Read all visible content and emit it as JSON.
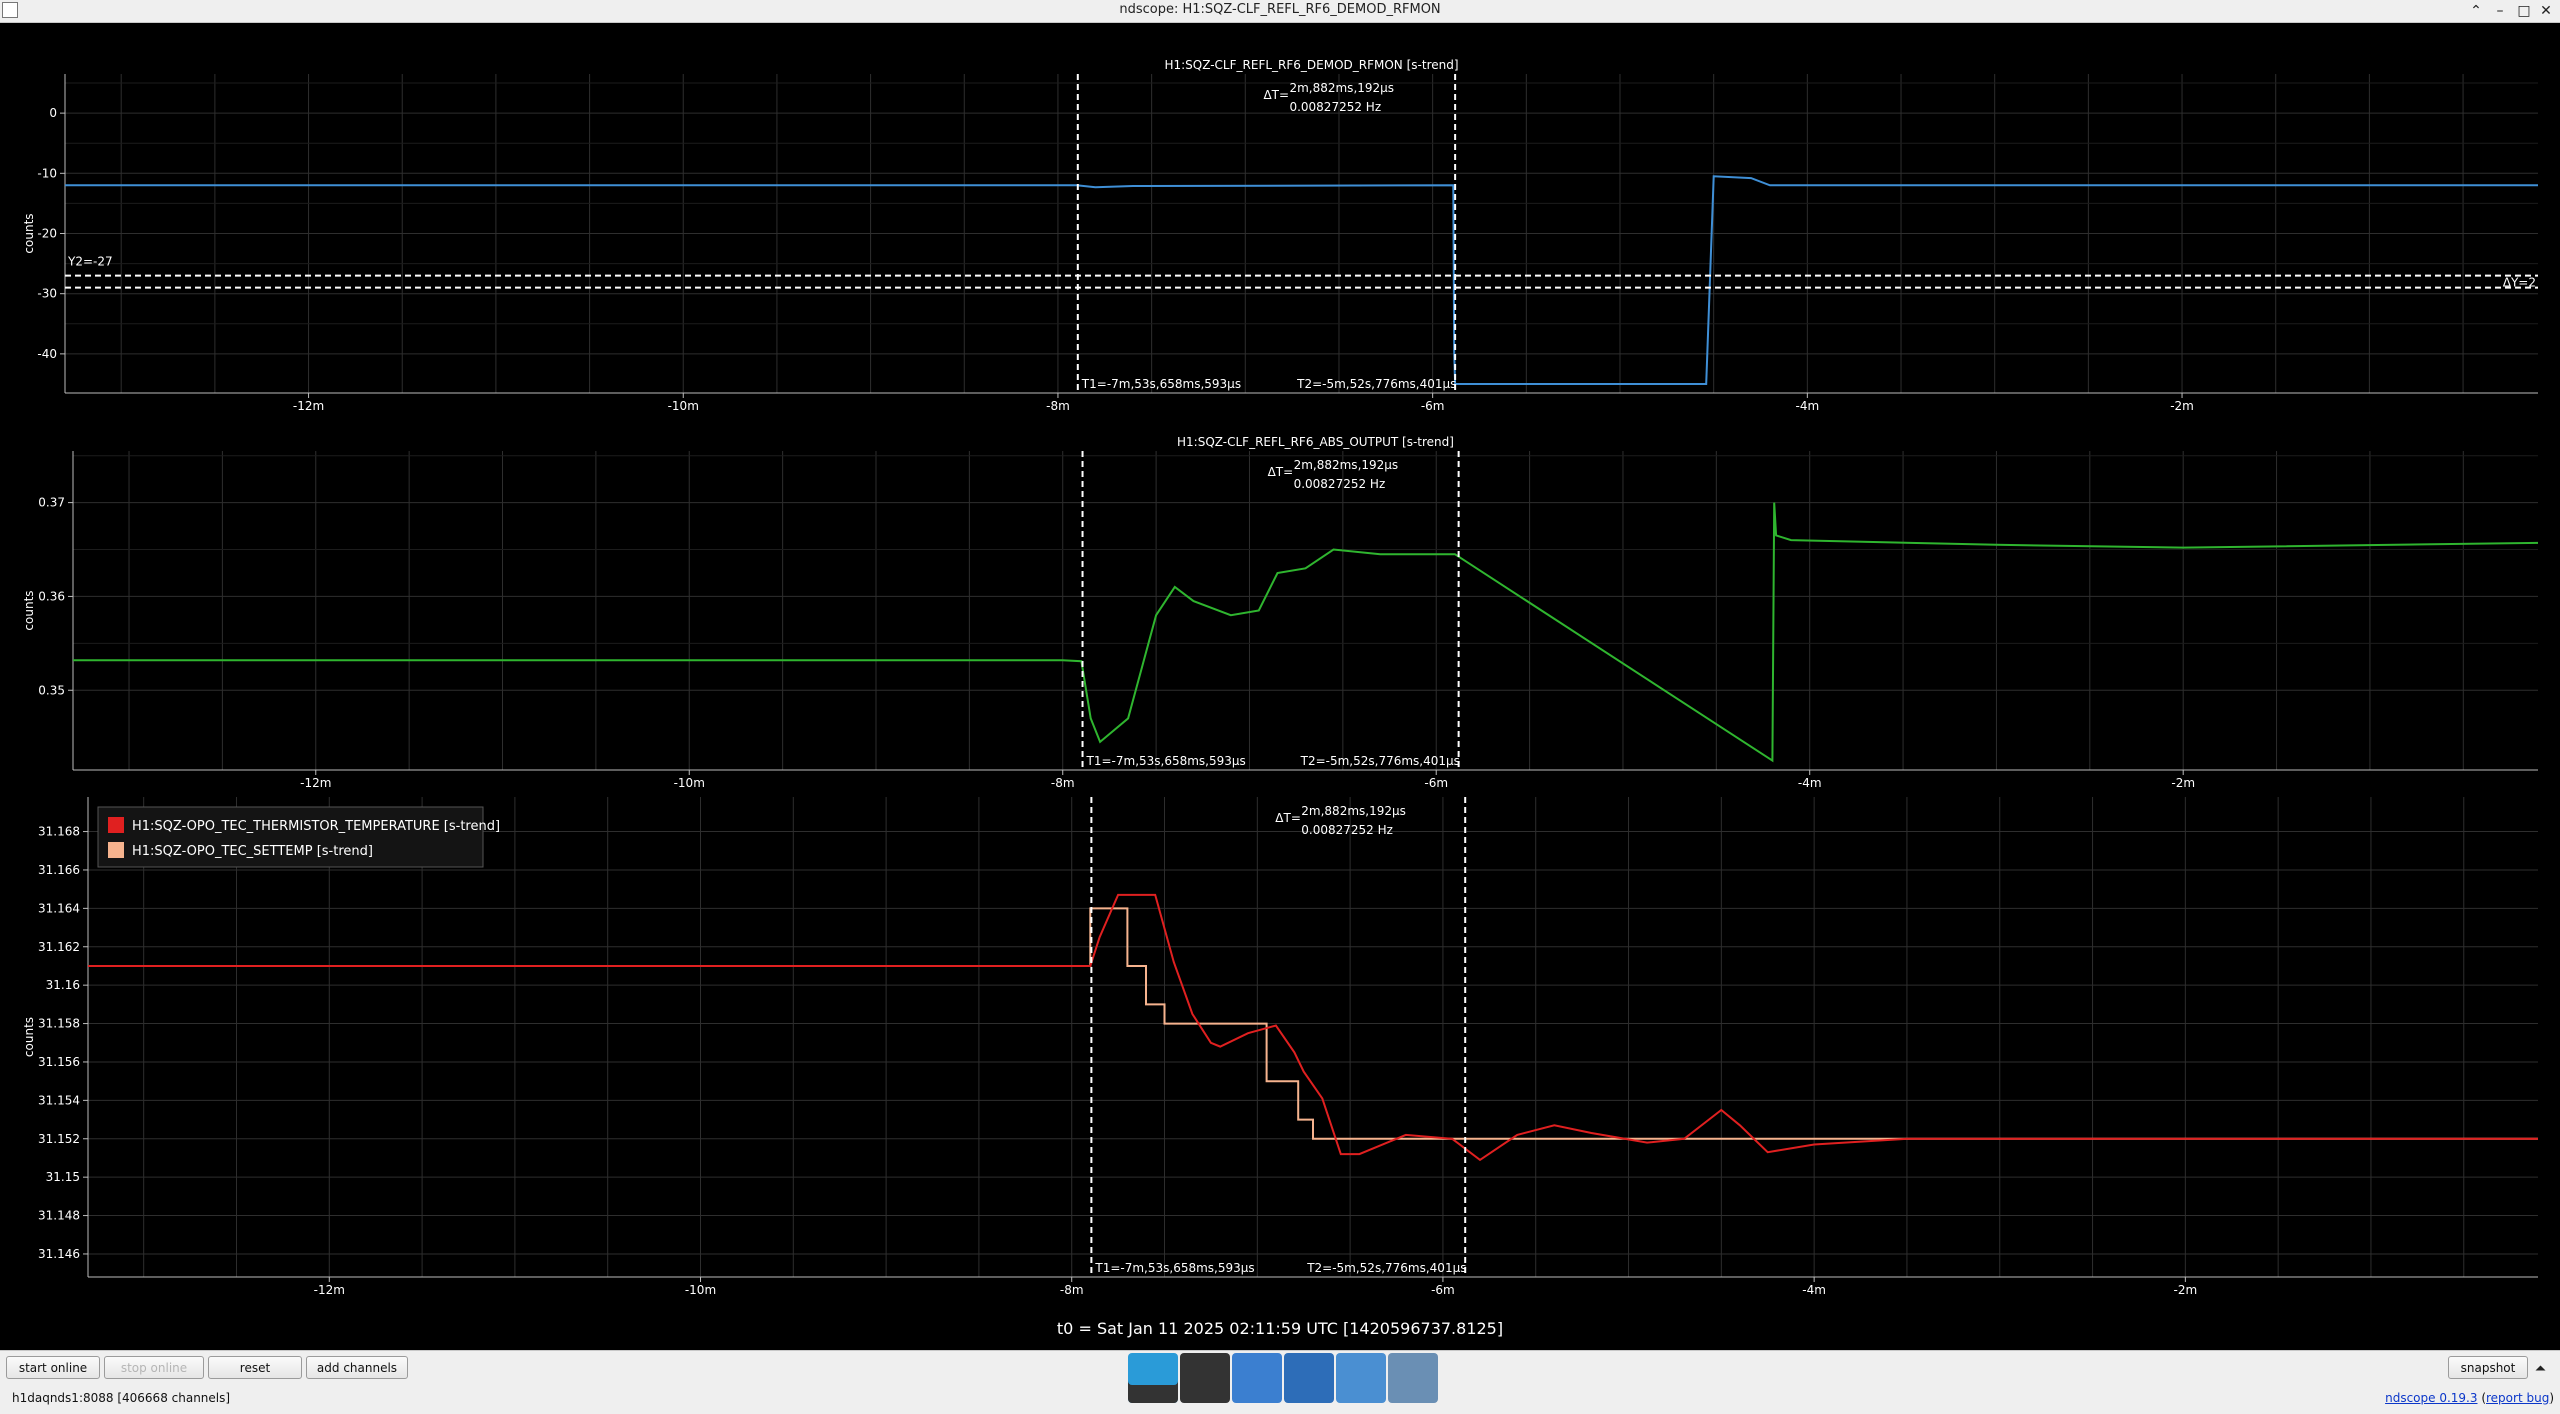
{
  "window": {
    "title": "ndscope: H1:SQZ-CLF_REFL_RF6_DEMOD_RFMON",
    "controls": [
      "⌃",
      "–",
      "□",
      "✕"
    ]
  },
  "colors": {
    "background": "#000000",
    "grid": "#2e2e2e",
    "cursor": "#ffffff",
    "rfmon_trace": "#3f8fd6",
    "abs_output_trace": "#2fb52f",
    "thermistor_trace": "#e02020",
    "settemp_trace": "#f6b38e"
  },
  "x_ticks": [
    "-12m",
    "-10m",
    "-8m",
    "-6m",
    "-4m",
    "-2m"
  ],
  "x_tick_values": [
    -12,
    -10,
    -8,
    -6,
    -4,
    -2
  ],
  "x_range": [
    -13.3,
    -0.1
  ],
  "cursors": {
    "t1": "T1=-7m,53s,658ms,593µs",
    "t2": "T2=-5m,52s,776ms,401µs",
    "t1_value": -7.894,
    "t2_value": -5.88,
    "delta_t_label": "ΔT=",
    "delta_t": "2m,882ms,192µs",
    "delta_freq": "0.00827252 Hz"
  },
  "plots": [
    {
      "title": "H1:SQZ-CLF_REFL_RF6_DEMOD_RFMON [s-trend]",
      "ylabel": "counts",
      "y_ticks": [
        "0",
        "-10",
        "-20",
        "-30",
        "-40"
      ],
      "y_tick_values": [
        0,
        -10,
        -20,
        -30,
        -40
      ],
      "y_range": [
        -46.5,
        6.5
      ],
      "y_cursors": {
        "y2": "Y2=-27",
        "y2_value": -27,
        "y1_value": -29,
        "delta_y": "ΔY=2"
      }
    },
    {
      "title": "H1:SQZ-CLF_REFL_RF6_ABS_OUTPUT [s-trend]",
      "ylabel": "counts",
      "y_ticks": [
        "0.37",
        "0.36",
        "0.35"
      ],
      "y_tick_values": [
        0.37,
        0.36,
        0.35
      ],
      "y_range": [
        0.3415,
        0.3755
      ]
    },
    {
      "title": "",
      "ylabel": "counts",
      "y_ticks": [
        "31.168",
        "31.166",
        "31.164",
        "31.162",
        "31.16",
        "31.158",
        "31.156",
        "31.154",
        "31.152",
        "31.15",
        "31.148",
        "31.146"
      ],
      "y_tick_values": [
        31.168,
        31.166,
        31.164,
        31.162,
        31.16,
        31.158,
        31.156,
        31.154,
        31.152,
        31.15,
        31.148,
        31.146
      ],
      "y_range": [
        31.1448,
        31.1698
      ],
      "legend": [
        {
          "name": "H1:SQZ-OPO_TEC_THERMISTOR_TEMPERATURE [s-trend]",
          "color": "#e02020"
        },
        {
          "name": "H1:SQZ-OPO_TEC_SETTEMP [s-trend]",
          "color": "#f6b38e"
        }
      ]
    }
  ],
  "chart_data": [
    {
      "type": "line",
      "title": "H1:SQZ-CLF_REFL_RF6_DEMOD_RFMON [s-trend]",
      "ylabel": "counts",
      "ylim": [
        -46.5,
        6.5
      ],
      "grid": true,
      "series": [
        {
          "x": [
            -13.3,
            -7.9,
            -7.8,
            -7.6,
            -5.89,
            -5.885,
            -5.88,
            -4.54,
            -4.5,
            -4.3,
            -4.2,
            -2.0,
            -0.1
          ],
          "values": [
            -12,
            -12,
            -12.3,
            -12.1,
            -12,
            -40,
            -45,
            -45,
            -10.5,
            -10.8,
            -12,
            -12,
            -12
          ]
        }
      ]
    },
    {
      "type": "line",
      "title": "H1:SQZ-CLF_REFL_RF6_ABS_OUTPUT [s-trend]",
      "ylabel": "counts",
      "ylim": [
        0.3415,
        0.3755
      ],
      "grid": true,
      "series": [
        {
          "x": [
            -13.3,
            -10.0,
            -8.0,
            -7.9,
            -7.85,
            -7.8,
            -7.65,
            -7.5,
            -7.4,
            -7.3,
            -7.1,
            -6.95,
            -6.85,
            -6.7,
            -6.55,
            -6.3,
            -5.9,
            -4.2,
            -4.19,
            -4.18,
            -4.1,
            -3.0,
            -2.0,
            -0.1
          ],
          "values": [
            0.3532,
            0.3532,
            0.3532,
            0.3531,
            0.347,
            0.3445,
            0.347,
            0.358,
            0.361,
            0.3595,
            0.358,
            0.3585,
            0.3625,
            0.363,
            0.365,
            0.3645,
            0.3645,
            0.3425,
            0.37,
            0.3665,
            0.366,
            0.3655,
            0.3652,
            0.3657
          ]
        }
      ]
    },
    {
      "type": "line",
      "title": "",
      "ylabel": "counts",
      "ylim": [
        31.1448,
        31.1698
      ],
      "grid": true,
      "legend": "top-left",
      "series": [
        {
          "name": "H1:SQZ-OPO_TEC_THERMISTOR_TEMPERATURE [s-trend]",
          "x": [
            -13.3,
            -7.9,
            -7.85,
            -7.75,
            -7.55,
            -7.45,
            -7.35,
            -7.25,
            -7.2,
            -7.05,
            -6.9,
            -6.8,
            -6.75,
            -6.65,
            -6.55,
            -6.45,
            -6.2,
            -5.95,
            -5.8,
            -5.6,
            -5.4,
            -5.2,
            -4.9,
            -4.7,
            -4.5,
            -4.4,
            -4.25,
            -4.0,
            -3.5,
            -2.0,
            -0.1
          ],
          "values": [
            31.161,
            31.161,
            31.1625,
            31.1647,
            31.1647,
            31.1612,
            31.1585,
            31.157,
            31.1568,
            31.1575,
            31.1579,
            31.1565,
            31.1555,
            31.1541,
            31.1512,
            31.1512,
            31.1522,
            31.152,
            31.1509,
            31.1522,
            31.1527,
            31.1523,
            31.1518,
            31.152,
            31.1535,
            31.1527,
            31.1513,
            31.1517,
            31.152,
            31.152,
            31.152
          ]
        },
        {
          "name": "H1:SQZ-OPO_TEC_SETTEMP [s-trend]",
          "x": [
            -13.3,
            -7.9,
            -7.9,
            -7.7,
            -7.7,
            -7.6,
            -7.6,
            -7.5,
            -7.5,
            -7.2,
            -7.2,
            -6.95,
            -6.95,
            -6.85,
            -6.85,
            -6.78,
            -6.78,
            -6.7,
            -6.7,
            -0.1
          ],
          "values": [
            31.161,
            31.161,
            31.164,
            31.164,
            31.161,
            31.161,
            31.159,
            31.159,
            31.158,
            31.158,
            31.158,
            31.158,
            31.155,
            31.155,
            31.155,
            31.155,
            31.153,
            31.153,
            31.152,
            31.152
          ]
        }
      ]
    }
  ],
  "footer": {
    "t0": "t0 = Sat Jan 11 2025 02:11:59 UTC [1420596737.8125]"
  },
  "toolbar": {
    "start_online": "start online",
    "stop_online": "stop online",
    "reset": "reset",
    "add_channels": "add channels",
    "snapshot": "snapshot"
  },
  "status": {
    "server": "h1daqnds1:8088  [406668 channels]",
    "version": "ndscope 0.19.3",
    "report_bug": "report bug"
  },
  "dock": [
    {
      "icon": "window-icon",
      "color": "#2a9bd8"
    },
    {
      "icon": "terminal-icon",
      "color": "#333333"
    },
    {
      "icon": "text-editor-icon",
      "color": "#3b7fd0"
    },
    {
      "icon": "browser-icon",
      "color": "#2d6db8"
    },
    {
      "icon": "search-icon",
      "color": "#4a8fd2"
    },
    {
      "icon": "folder-icon",
      "color": "#6a8fb4"
    }
  ]
}
